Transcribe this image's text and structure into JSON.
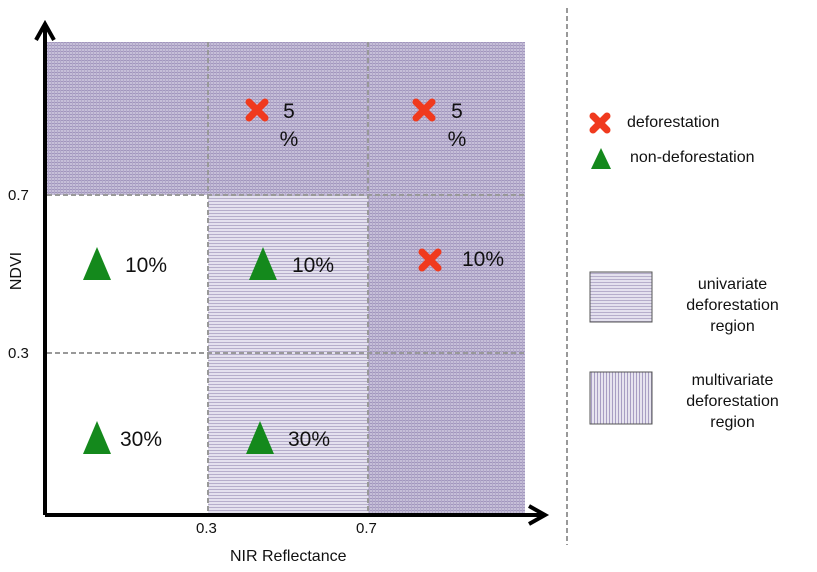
{
  "axes": {
    "x": {
      "label": "NIR Reflectance",
      "ticks": [
        "0.3",
        "0.7"
      ]
    },
    "y": {
      "label": "NDVI",
      "ticks": [
        "0.3",
        "0.7"
      ]
    }
  },
  "cells": {
    "top_middle": "5 %",
    "top_right": "5 %",
    "middle_left": "10%",
    "middle_middle": "10%",
    "middle_right": "10%",
    "bottom_left": "30%",
    "bottom_middle": "30%"
  },
  "legend": {
    "deforestation": "deforestation",
    "non_deforestation": "non-deforestation",
    "univariate": "univariate deforestation region",
    "multivariate": "multivariate deforestation region"
  }
}
